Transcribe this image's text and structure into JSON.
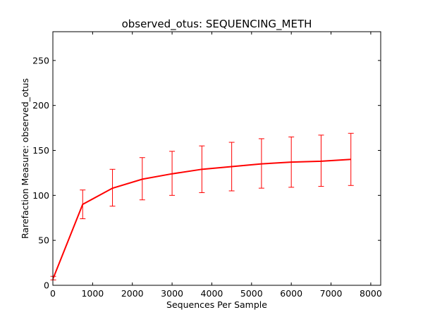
{
  "chart_data": {
    "type": "line",
    "title": "observed_otus: SEQUENCING_METH",
    "xlabel": "Sequences Per Sample",
    "ylabel": "Rarefaction Measure: observed_otus",
    "xlim": [
      0,
      8250
    ],
    "ylim": [
      0,
      282
    ],
    "xticks": [
      0,
      1000,
      2000,
      3000,
      4000,
      5000,
      6000,
      7000,
      8000
    ],
    "yticks": [
      0,
      50,
      100,
      150,
      200,
      250
    ],
    "grid": false,
    "series": [
      {
        "color": "#ff0000",
        "x": [
          10,
          750,
          1500,
          2250,
          3000,
          3750,
          4500,
          5250,
          6000,
          6750,
          7500
        ],
        "y": [
          8,
          90,
          108,
          118,
          124,
          129,
          132,
          135,
          137,
          138,
          140
        ],
        "err_low": [
          6,
          74,
          88,
          95,
          100,
          103,
          105,
          108,
          109,
          110,
          111
        ],
        "err_high": [
          10,
          106,
          129,
          142,
          149,
          155,
          159,
          163,
          165,
          167,
          169
        ]
      }
    ]
  }
}
